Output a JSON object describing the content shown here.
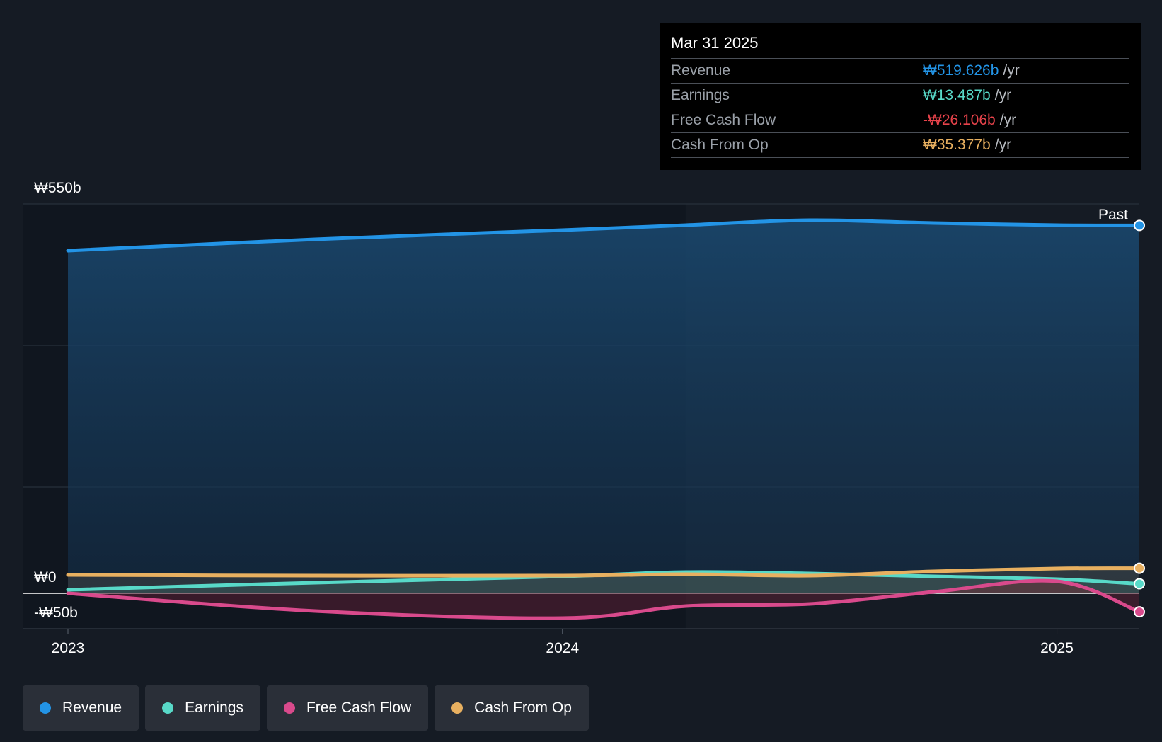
{
  "chart_data": {
    "type": "line",
    "x_ticks": [
      "2023",
      "2024",
      "2025"
    ],
    "y_ticks": [
      "₩550b",
      "₩0",
      "-₩50b"
    ],
    "ylim": [
      -50,
      550
    ],
    "xlim": [
      "2023-01",
      "2025-03"
    ],
    "marker_label": "Past",
    "series": [
      {
        "name": "Revenue",
        "color": "#2394e6",
        "x": [
          "2023-01",
          "2023-07",
          "2024-01",
          "2024-04",
          "2024-07",
          "2024-10",
          "2025-01",
          "2025-03"
        ],
        "y": [
          484,
          500,
          513,
          520,
          527,
          523,
          520,
          519.626
        ]
      },
      {
        "name": "Earnings",
        "color": "#58d9c8",
        "x": [
          "2023-01",
          "2023-07",
          "2024-01",
          "2024-04",
          "2024-07",
          "2024-10",
          "2025-01",
          "2025-03"
        ],
        "y": [
          5,
          15,
          24,
          30,
          28,
          24,
          20,
          13.487
        ]
      },
      {
        "name": "Free Cash Flow",
        "color": "#d94a8c",
        "x": [
          "2023-01",
          "2023-07",
          "2024-01",
          "2024-04",
          "2024-07",
          "2024-10",
          "2025-01",
          "2025-03"
        ],
        "y": [
          0,
          -25,
          -35,
          -18,
          -15,
          2,
          17,
          -26.106
        ]
      },
      {
        "name": "Cash From Op",
        "color": "#e8b060",
        "x": [
          "2023-01",
          "2023-07",
          "2024-01",
          "2024-04",
          "2024-07",
          "2024-10",
          "2025-01",
          "2025-03"
        ],
        "y": [
          26,
          25,
          25,
          27,
          25,
          31,
          35,
          35.377
        ]
      }
    ]
  },
  "tooltip": {
    "date": "Mar 31 2025",
    "rows": [
      {
        "label": "Revenue",
        "value": "₩519.626b",
        "unit": "/yr",
        "color": "#2394e6"
      },
      {
        "label": "Earnings",
        "value": "₩13.487b",
        "unit": "/yr",
        "color": "#58d9c8"
      },
      {
        "label": "Free Cash Flow",
        "value": "-₩26.106b",
        "unit": "/yr",
        "color": "#e8434b"
      },
      {
        "label": "Cash From Op",
        "value": "₩35.377b",
        "unit": "/yr",
        "color": "#e8b060"
      }
    ]
  },
  "legend": [
    {
      "label": "Revenue",
      "color": "#2394e6"
    },
    {
      "label": "Earnings",
      "color": "#58d9c8"
    },
    {
      "label": "Free Cash Flow",
      "color": "#d94a8c"
    },
    {
      "label": "Cash From Op",
      "color": "#e8b060"
    }
  ]
}
